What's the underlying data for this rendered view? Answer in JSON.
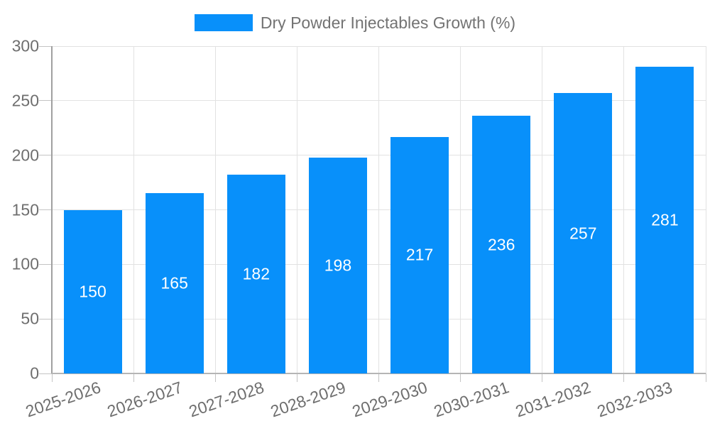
{
  "legend": {
    "position": "top-center"
  },
  "chart_data": {
    "type": "bar",
    "title": "",
    "series_name": "Dry Powder Injectables Growth (%)",
    "categories": [
      "2025-2026",
      "2026-2027",
      "2027-2028",
      "2028-2029",
      "2029-2030",
      "2030-2031",
      "2031-2032",
      "2032-2033"
    ],
    "values": [
      150,
      165,
      182,
      198,
      217,
      236,
      257,
      281
    ],
    "value_labels": [
      "150",
      "165",
      "182",
      "198",
      "217",
      "236",
      "257",
      "281"
    ],
    "xlabel": "",
    "ylabel": "",
    "ylim": [
      0,
      300
    ],
    "yticks": [
      0,
      50,
      100,
      150,
      200,
      250,
      300
    ],
    "ytick_labels": [
      "0",
      "50",
      "100",
      "150",
      "200",
      "250",
      "300"
    ],
    "grid": true,
    "x_label_rotation_deg": -19,
    "legend_position": "top-center"
  },
  "style": {
    "bar_color": "#0890fa",
    "grid_color": "#e2e2e2",
    "y_axis_line_color": "#a0a0a0",
    "x_axis_line_color": "#b5b5b5",
    "tick_color": "#c4c4c4",
    "axis_text_color": "#6e6e6e",
    "legend_text_color": "#737373",
    "value_text_color": "#ffffff",
    "background_color": "#ffffff"
  }
}
